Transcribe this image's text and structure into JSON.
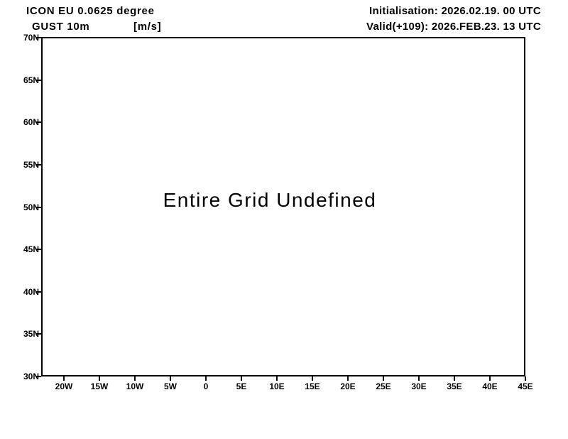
{
  "page": {
    "background_color": "#ffffff",
    "text_color": "#000000"
  },
  "header": {
    "left": {
      "model_title": "ICON EU 0.0625 degree",
      "variable": "GUST 10m",
      "unit": "[m/s]"
    },
    "right": {
      "initialisation": "Initialisation: 2026.02.19. 00 UTC",
      "valid": "Valid(+109): 2026.FEB.23. 13 UTC"
    }
  },
  "chart_data": {
    "type": "heatmap",
    "title": "ICON EU 0.0625 degree",
    "subtitle": "GUST 10m [m/s]",
    "annotation": "Entire Grid Undefined",
    "grid": false,
    "legend": false,
    "frame_color": "#000000",
    "values": [],
    "x_axis": {
      "ticks": [
        "20W",
        "15W",
        "10W",
        "5W",
        "0",
        "5E",
        "10E",
        "15E",
        "20E",
        "25E",
        "30E",
        "35E",
        "40E",
        "45E"
      ],
      "tick_values_deg": [
        -20,
        -15,
        -10,
        -5,
        0,
        5,
        10,
        15,
        20,
        25,
        30,
        35,
        40,
        45
      ]
    },
    "y_axis": {
      "ticks": [
        "70N",
        "65N",
        "60N",
        "55N",
        "50N",
        "45N",
        "40N",
        "35N",
        "30N"
      ],
      "tick_values_deg": [
        70,
        65,
        60,
        55,
        50,
        45,
        40,
        35,
        30
      ]
    },
    "x_range_deg": [
      -23.2,
      45
    ],
    "y_range_deg": [
      30,
      70
    ]
  }
}
